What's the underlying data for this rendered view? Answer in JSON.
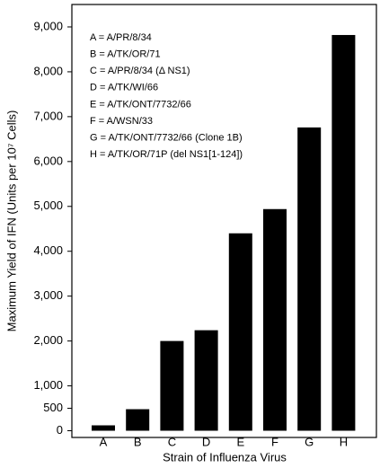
{
  "chart_data": {
    "type": "bar",
    "x_label": "Strain of Influenza Virus",
    "y_label": "Maximum Yield of IFN (Units per 10⁷ Cells)",
    "categories": [
      "A",
      "B",
      "C",
      "D",
      "E",
      "F",
      "G",
      "H"
    ],
    "values": [
      120,
      480,
      2000,
      2240,
      4400,
      4940,
      6760,
      8820
    ],
    "color": "#000000",
    "ylim": [
      -150,
      9500
    ],
    "yticks": [
      0,
      500,
      {
        "value": 1000,
        "label": "1,000"
      },
      {
        "value": 2000,
        "label": "2,000"
      },
      {
        "value": 3000,
        "label": "3,000"
      },
      {
        "value": 4000,
        "label": "4,000"
      },
      {
        "value": 5000,
        "label": "5,000"
      },
      {
        "value": 6000,
        "label": "6,000"
      },
      {
        "value": 7000,
        "label": "7,000"
      },
      {
        "value": 8000,
        "label": "8,000"
      },
      {
        "value": 9000,
        "label": "9,000"
      }
    ],
    "grid": false,
    "annotations": [
      "A = A/PR/8/34",
      "B = A/TK/OR/71",
      "C = A/PR/8/34 (Δ NS1)",
      "D = A/TK/WI/66",
      "E = A/TK/ONT/7732/66",
      "F = A/WSN/33",
      "G = A/TK/ONT/7732/66 (Clone 1B)",
      "H = A/TK/OR/71P (del NS1[1-124])"
    ]
  }
}
